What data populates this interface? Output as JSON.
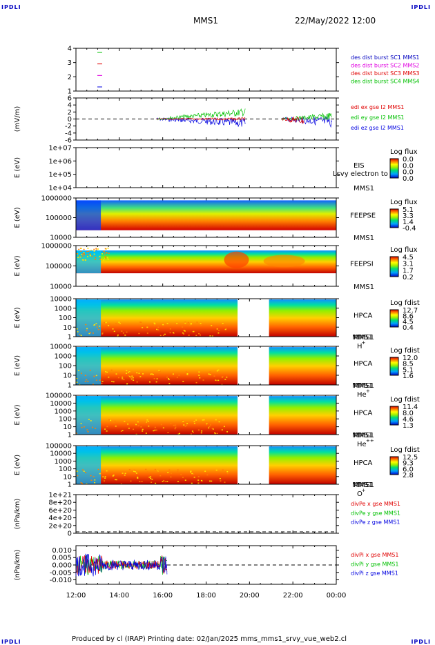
{
  "header": {
    "corner_left": "IPDLI",
    "corner_right": "IPDLI",
    "title": "MMS1",
    "date": "22/May/2022 12:00"
  },
  "footer": {
    "corner_left": "IPDLI",
    "corner_right": "IPDLI",
    "text": "Produced by cl (IRAP)   Printing date: 02/Jan/2025   mms_mms1_srvy_vue_web2.cl"
  },
  "x_axis": {
    "ticks": [
      "12:00",
      "14:00",
      "16:00",
      "18:00",
      "20:00",
      "22:00",
      "00:00"
    ]
  },
  "colors": {
    "red": "#e00000",
    "green": "#00c000",
    "blue": "#0000e0",
    "magenta": "#e000e0"
  },
  "chart_data": [
    {
      "type": "line",
      "panel": "burst-intervals",
      "ylabel": "",
      "yticks": [
        "4",
        "3",
        "2",
        "1"
      ],
      "legend": [
        {
          "name": "des dist burst SC1 MMS1",
          "color": "#0000c0"
        },
        {
          "name": "des dist burst SC2 MMS2",
          "color": "#e000e0"
        },
        {
          "name": "des dist burst SC3 MMS3",
          "color": "#e00000"
        },
        {
          "name": "des dist burst SC4 MMS4",
          "color": "#00c000"
        }
      ]
    },
    {
      "type": "line",
      "panel": "electric-field",
      "ylabel": "(mV/m)",
      "yticks": [
        "6",
        "4",
        "2",
        "0",
        "-2",
        "-4",
        "-6"
      ],
      "ylim": [
        -6,
        6
      ],
      "legend": [
        {
          "name": "edi ex gse l2 MMS1",
          "color": "#e00000"
        },
        {
          "name": "edi ey gse l2 MMS1",
          "color": "#00c000"
        },
        {
          "name": "edi ez gse l2 MMS1",
          "color": "#0000e0"
        }
      ]
    },
    {
      "type": "heatmap",
      "panel": "eis",
      "ylabel": "E (eV)",
      "yticks": [
        "1e+07",
        "1e+06",
        "1e+05",
        "1e+04"
      ],
      "instrument": "EIS",
      "spacecraft": "MMS1",
      "overlay_text": "Lsvy electron to",
      "colorbar_title": "Log flux",
      "colorbar_ticks": [
        "0.0",
        "0.0",
        "0.0",
        "0.0"
      ]
    },
    {
      "type": "heatmap",
      "panel": "feepse",
      "ylabel": "E (eV)",
      "yticks": [
        "1000000",
        "100000",
        "10000"
      ],
      "instrument": "FEEPSE",
      "spacecraft": "MMS1",
      "colorbar_title": "Log flux",
      "colorbar_ticks": [
        "5.1",
        "3.3",
        "1.4",
        "-0.4"
      ]
    },
    {
      "type": "heatmap",
      "panel": "feepsi",
      "ylabel": "E (eV)",
      "yticks": [
        "1000000",
        "100000",
        "10000"
      ],
      "instrument": "FEEPSI",
      "spacecraft": "MMS1",
      "colorbar_title": "Log flux",
      "colorbar_ticks": [
        "4.5",
        "3.1",
        "1.7",
        "0.2"
      ]
    },
    {
      "type": "heatmap",
      "panel": "hpca-h",
      "ylabel": "E (eV)",
      "yticks": [
        "10000",
        "1000",
        "100",
        "10",
        "1"
      ],
      "instrument": "HPCA",
      "spacecraft": "MMS1",
      "species": "H",
      "species_sup": "+",
      "colorbar_title": "Log fdist",
      "colorbar_ticks": [
        "12.7",
        "8.6",
        "4.5",
        "0.4"
      ]
    },
    {
      "type": "heatmap",
      "panel": "hpca-he",
      "ylabel": "E (eV)",
      "yticks": [
        "10000",
        "1000",
        "100",
        "10",
        "1"
      ],
      "instrument": "HPCA",
      "spacecraft": "MMS1",
      "species": "He",
      "species_sup": "+",
      "colorbar_title": "Log fdist",
      "colorbar_ticks": [
        "12.0",
        "8.5",
        "5.1",
        "1.6"
      ]
    },
    {
      "type": "heatmap",
      "panel": "hpca-he2",
      "ylabel": "E (eV)",
      "yticks": [
        "100000",
        "10000",
        "1000",
        "100",
        "10",
        "1"
      ],
      "instrument": "HPCA",
      "spacecraft": "MMS1",
      "species": "He",
      "species_sup": "++",
      "colorbar_title": "Log fdist",
      "colorbar_ticks": [
        "11.4",
        "8.0",
        "4.6",
        "1.3"
      ]
    },
    {
      "type": "heatmap",
      "panel": "hpca-o",
      "ylabel": "E (eV)",
      "yticks": [
        "100000",
        "10000",
        "1000",
        "100",
        "10",
        "1"
      ],
      "instrument": "HPCA",
      "spacecraft": "MMS1",
      "species": "O",
      "species_sup": "+",
      "colorbar_title": "Log fdist",
      "colorbar_ticks": [
        "12.5",
        "9.3",
        "6.0",
        "2.8"
      ]
    },
    {
      "type": "line",
      "panel": "div-pe",
      "ylabel": "(nPa/km)",
      "yticks": [
        "1e+21",
        "8e+20",
        "6e+20",
        "4e+20",
        "2e+20",
        "0"
      ],
      "ylim": [
        0,
        1e+21
      ],
      "legend": [
        {
          "name": "divPe x gse MMS1",
          "color": "#e00000"
        },
        {
          "name": "divPe y gse MMS1",
          "color": "#00c000"
        },
        {
          "name": "divPe z gse MMS1",
          "color": "#0000e0"
        }
      ]
    },
    {
      "type": "line",
      "panel": "div-pi",
      "ylabel": "(nPa/km)",
      "yticks": [
        "0.010",
        "0.005",
        "0.000",
        "-0.005",
        "-0.010"
      ],
      "ylim": [
        -0.013,
        0.013
      ],
      "legend": [
        {
          "name": "divPi x gse MMS1",
          "color": "#e00000"
        },
        {
          "name": "divPi y gse MMS1",
          "color": "#00c000"
        },
        {
          "name": "divPi z gse MMS1",
          "color": "#0000e0"
        }
      ]
    }
  ]
}
